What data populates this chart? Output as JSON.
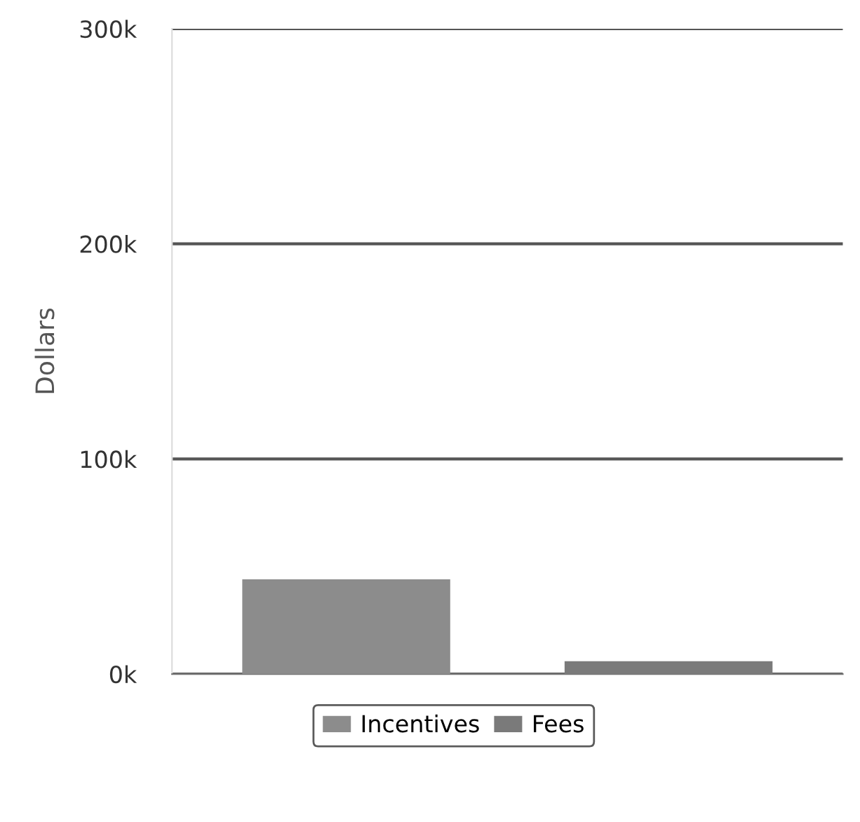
{
  "chart_data": {
    "type": "bar",
    "ylabel": "Dollars",
    "categories": [
      null
    ],
    "series": [
      {
        "name": "Incentives",
        "color": "#8c8c8c",
        "values": [
          44000
        ]
      },
      {
        "name": "Fees",
        "color": "#7a7a7a",
        "values": [
          6000
        ]
      }
    ],
    "ylim": [
      0,
      300000
    ],
    "yticks": [
      {
        "value": 0,
        "label": "0k"
      },
      {
        "value": 100000,
        "label": "100k"
      },
      {
        "value": 200000,
        "label": "200k"
      },
      {
        "value": 300000,
        "label": "300k"
      }
    ],
    "grid": "y",
    "legend": "bottom"
  }
}
